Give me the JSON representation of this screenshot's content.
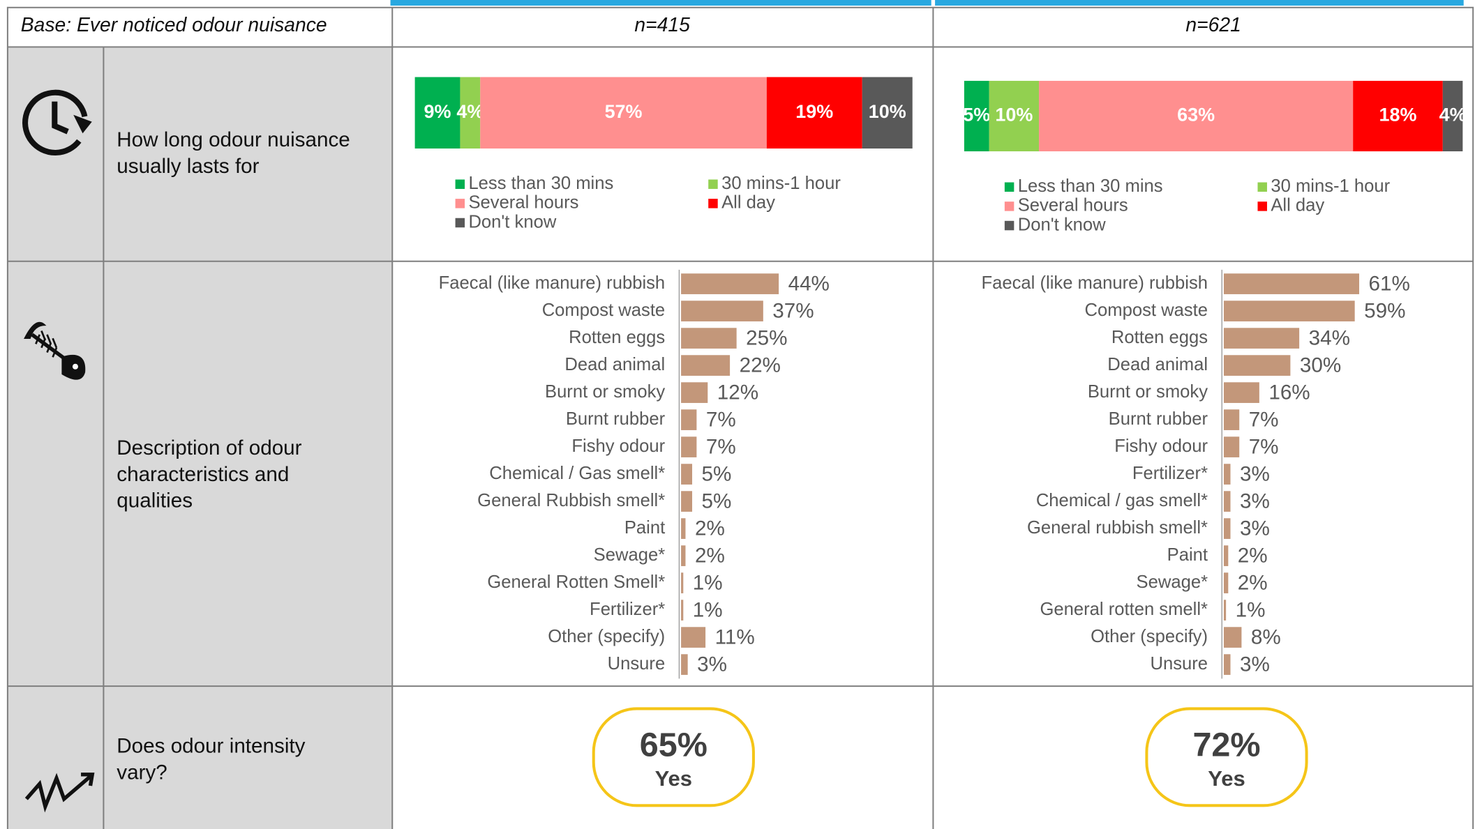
{
  "header": {
    "base": "Base: Ever noticed odour nuisance",
    "n": [
      "n=415",
      "n=621"
    ]
  },
  "row_labels": [
    [
      "How long odour nuisance",
      "usually lasts for"
    ],
    [
      "Description of odour",
      "characteristics and",
      "qualities"
    ],
    [
      "Does odour intensity",
      "vary?"
    ]
  ],
  "intensity": [
    {
      "percent": "65%",
      "answer": "Yes"
    },
    {
      "percent": "72%",
      "answer": "Yes"
    }
  ],
  "chart_data": [
    {
      "type": "stacked_bar",
      "xlim": [
        0,
        99
      ],
      "series": [
        {
          "name": "Less than 30 mins",
          "color": "#00b050",
          "values": [
            9
          ],
          "value_labels": [
            "9%"
          ]
        },
        {
          "name": "30 mins-1 hour",
          "color": "#92d050",
          "values": [
            4
          ],
          "value_labels": [
            "4%"
          ]
        },
        {
          "name": "Several hours",
          "color": "#ff8f8f",
          "values": [
            57
          ],
          "value_labels": [
            "57%"
          ]
        },
        {
          "name": "All day",
          "color": "#ff0000",
          "values": [
            19
          ],
          "value_labels": [
            "19%"
          ]
        },
        {
          "name": "Don't know",
          "color": "#595959",
          "values": [
            10
          ],
          "value_labels": [
            "10%"
          ]
        }
      ]
    },
    {
      "type": "stacked_bar",
      "xlim": [
        0,
        100
      ],
      "series": [
        {
          "name": "Less than 30 mins",
          "color": "#00b050",
          "values": [
            5
          ],
          "value_labels": [
            "5%"
          ]
        },
        {
          "name": "30 mins-1 hour",
          "color": "#92d050",
          "values": [
            10
          ],
          "value_labels": [
            "10%"
          ]
        },
        {
          "name": "Several hours",
          "color": "#ff8f8f",
          "values": [
            63
          ],
          "value_labels": [
            "63%"
          ]
        },
        {
          "name": "All day",
          "color": "#ff0000",
          "values": [
            18
          ],
          "value_labels": [
            "18%"
          ]
        },
        {
          "name": "Don't know",
          "color": "#595959",
          "values": [
            4
          ],
          "value_labels": [
            "4%"
          ]
        }
      ]
    },
    {
      "type": "hbar",
      "color": "#c3977a",
      "xlim": [
        0,
        100
      ],
      "categories": [
        "Faecal (like manure) rubbish",
        "Compost waste",
        "Rotten eggs",
        "Dead animal",
        "Burnt or smoky",
        "Burnt rubber",
        "Fishy odour",
        "Chemical / Gas smell*",
        "General Rubbish smell*",
        "Paint",
        "Sewage*",
        "General Rotten Smell*",
        "Fertilizer*",
        "Other (specify)",
        "Unsure"
      ],
      "values": [
        44,
        37,
        25,
        22,
        12,
        7,
        7,
        5,
        5,
        2,
        2,
        1,
        1,
        11,
        3
      ],
      "value_labels": [
        "44%",
        "37%",
        "25%",
        "22%",
        "12%",
        "7%",
        "7%",
        "5%",
        "5%",
        "2%",
        "2%",
        "1%",
        "1%",
        "11%",
        "3%"
      ]
    },
    {
      "type": "hbar",
      "color": "#c3977a",
      "xlim": [
        0,
        100
      ],
      "categories": [
        "Faecal (like manure) rubbish",
        "Compost waste",
        "Rotten eggs",
        "Dead animal",
        "Burnt or smoky",
        "Burnt rubber",
        "Fishy odour",
        "Fertilizer*",
        "Chemical / gas smell*",
        "General rubbish smell*",
        "Paint",
        "Sewage*",
        "General rotten smell*",
        "Other (specify)",
        "Unsure"
      ],
      "values": [
        61,
        59,
        34,
        30,
        16,
        7,
        7,
        3,
        3,
        3,
        2,
        2,
        1,
        8,
        3
      ],
      "value_labels": [
        "61%",
        "59%",
        "34%",
        "30%",
        "16%",
        "7%",
        "7%",
        "3%",
        "3%",
        "3%",
        "2%",
        "2%",
        "1%",
        "8%",
        "3%"
      ]
    }
  ]
}
